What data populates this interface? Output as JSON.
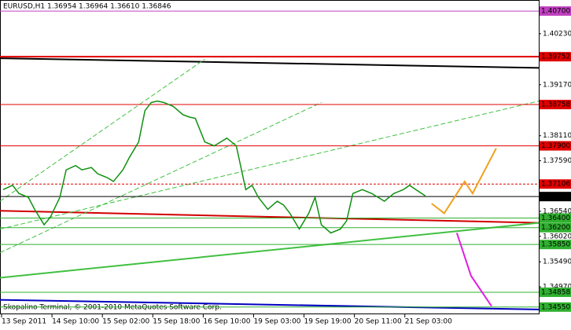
{
  "chart_data": {
    "type": "line",
    "title": "EURUSD,H1  1.36954 1.36964 1.36610 1.36846",
    "footer": "Skopalino Terminal, © 2001-2010 MetaQuotes Software Corp.",
    "xlim": [
      0,
      171
    ],
    "ylim": [
      1.344,
      1.4093
    ],
    "xticks": [
      {
        "value": 0,
        "label": "13 Sep 2011"
      },
      {
        "value": 16,
        "label": "14 Sep 10:00"
      },
      {
        "value": 32,
        "label": "15 Sep 02:00"
      },
      {
        "value": 48,
        "label": "15 Sep 18:00"
      },
      {
        "value": 64,
        "label": "16 Sep 10:00"
      },
      {
        "value": 80,
        "label": "19 Sep 03:00"
      },
      {
        "value": 96,
        "label": "19 Sep 19:00"
      },
      {
        "value": 112,
        "label": "20 Sep 11:00"
      },
      {
        "value": 128,
        "label": "21 Sep 03:00"
      }
    ],
    "yticks": [
      {
        "value": 1.4023,
        "label": "1.40230"
      },
      {
        "value": 1.3917,
        "label": "1.39170"
      },
      {
        "value": 1.3811,
        "label": "1.38110"
      },
      {
        "value": 1.3759,
        "label": "1.37590"
      },
      {
        "value": 1.3654,
        "label": "1.36540"
      },
      {
        "value": 1.3602,
        "label": "1.36020"
      },
      {
        "value": 1.3549,
        "label": "1.35490"
      },
      {
        "value": 1.3497,
        "label": "1.34970"
      }
    ],
    "series": [
      {
        "color": "#109010",
        "x": [
          1,
          4,
          6,
          9,
          11,
          14,
          16,
          19,
          21,
          24,
          26,
          29,
          31,
          34,
          36,
          39,
          41,
          44,
          46,
          48,
          50,
          52,
          55,
          58,
          60,
          62,
          65,
          68,
          70,
          72,
          75,
          78,
          80,
          82,
          85,
          88,
          90,
          92,
          95,
          98,
          100,
          102,
          105,
          108,
          110,
          112,
          115,
          118,
          120,
          122,
          125,
          128,
          130,
          132,
          135
        ],
        "values": [
          1.3699,
          1.3708,
          1.3691,
          1.3683,
          1.3658,
          1.3626,
          1.3642,
          1.3683,
          1.374,
          1.3749,
          1.374,
          1.3745,
          1.3732,
          1.3724,
          1.3716,
          1.374,
          1.3765,
          1.3798,
          1.3863,
          1.388,
          1.3883,
          1.388,
          1.3872,
          1.3855,
          1.385,
          1.3847,
          1.3798,
          1.379,
          1.3798,
          1.3806,
          1.379,
          1.3699,
          1.3708,
          1.3683,
          1.3658,
          1.3675,
          1.3667,
          1.365,
          1.3617,
          1.365,
          1.3683,
          1.3626,
          1.3609,
          1.3617,
          1.3634,
          1.3691,
          1.3699,
          1.3691,
          1.3683,
          1.3675,
          1.3691,
          1.3699,
          1.3708,
          1.3699,
          1.3686
        ]
      }
    ],
    "levels": [
      {
        "value": 1.407,
        "label": "1.40700",
        "color": "#c040c0",
        "width": 1
      },
      {
        "value": 1.39752,
        "label": "1.39752",
        "color": "#e00000",
        "width": 2
      },
      {
        "value": 1.38758,
        "label": "1.38758",
        "color": "#e00000",
        "width": 1
      },
      {
        "value": 1.379,
        "label": "1.37900",
        "color": "#e00000",
        "width": 1
      },
      {
        "value": 1.37106,
        "label": "1.37106",
        "color": "#e00000",
        "width": 1,
        "dash": true
      },
      {
        "value": 1.36846,
        "label": "1.36846",
        "color": "#000000",
        "width": 1
      },
      {
        "value": 1.364,
        "label": "1.36400",
        "color": "#30b030",
        "width": 1
      },
      {
        "value": 1.362,
        "label": "1.36200",
        "color": "#30b030",
        "width": 1
      },
      {
        "value": 1.3585,
        "label": "1.35850",
        "color": "#30b030",
        "width": 1
      },
      {
        "value": 1.34858,
        "label": "1.34858",
        "color": "#30b030",
        "width": 1
      },
      {
        "value": 1.3455,
        "label": "1.34550",
        "color": "#30b030",
        "width": 1
      }
    ],
    "trendlines": [
      {
        "x": [
          0,
          171
        ],
        "y": [
          1.3972,
          1.3952
        ],
        "color": "#000000",
        "width": 2
      },
      {
        "x": [
          0,
          171
        ],
        "y": [
          1.3655,
          1.363
        ],
        "color": "#d00000",
        "width": 2
      },
      {
        "x": [
          0,
          171
        ],
        "y": [
          1.3516,
          1.363
        ],
        "color": "#40c040",
        "width": 2
      },
      {
        "x": [
          0,
          171
        ],
        "y": [
          1.347,
          1.345
        ],
        "color": "#0000c0",
        "width": 2
      },
      {
        "x": [
          0,
          65
        ],
        "y": [
          1.3675,
          1.397
        ],
        "color": "#40c040",
        "width": 1,
        "dash": true
      },
      {
        "x": [
          0,
          102
        ],
        "y": [
          1.3568,
          1.388
        ],
        "color": "#40c040",
        "width": 1,
        "dash": true
      },
      {
        "x": [
          0,
          171
        ],
        "y": [
          1.3617,
          1.3883
        ],
        "color": "#40c040",
        "width": 1,
        "dash": true
      }
    ],
    "paths": [
      {
        "x": [
          137,
          141,
          147.5,
          150,
          157.5
        ],
        "y": [
          1.367,
          1.365,
          1.3716,
          1.3691,
          1.3785
        ],
        "color": "#f0a020"
      },
      {
        "x": [
          145,
          149.5,
          156
        ],
        "y": [
          1.3609,
          1.352,
          1.3457
        ],
        "color": "#e020e0"
      }
    ]
  }
}
